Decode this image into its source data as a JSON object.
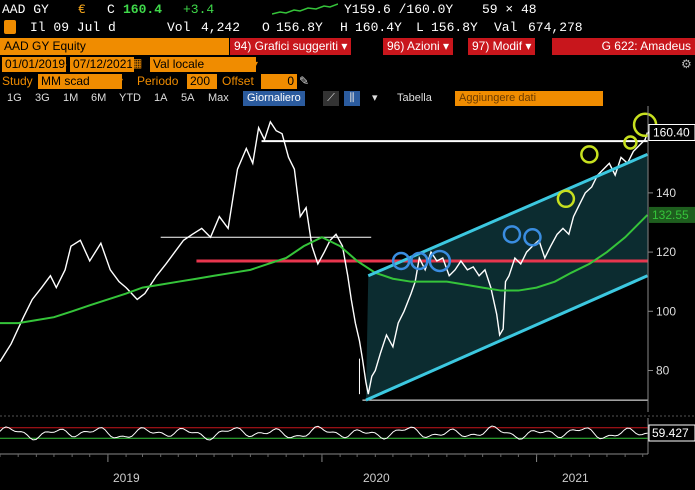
{
  "quote": {
    "ticker": "AAD GY",
    "currency_symbol": "€",
    "close_prefix": "C",
    "last": "160.4",
    "change": "+3.4",
    "bid_ask": "Y159.6 /160.0Y",
    "size": "59 × 48",
    "time_label": "Il 09 Jul d",
    "volume_label": "Vol",
    "volume": "4,242",
    "open_label": "O",
    "open": "156.8Y",
    "high_label": "H",
    "high": "160.4Y",
    "low_label": "L",
    "low": "156.8Y",
    "value_label": "Val",
    "value": "674,278"
  },
  "menu": {
    "security": "AAD GY Equity",
    "suggested": "94) Grafici suggeriti ▾",
    "actions": "96) Azioni ▾",
    "modify": "97) Modif ▾",
    "right_label": "G 622: Amadeus"
  },
  "controls": {
    "date_from": "01/01/2019",
    "date_to": "07/12/2021",
    "currency": "Val locale",
    "study_label": "Study",
    "study_value": "MM scad",
    "period_label": "Periodo",
    "period_value": "200",
    "offset_label": "Offset",
    "offset_value": "0"
  },
  "toolbar": {
    "ranges": [
      "1G",
      "3G",
      "1M",
      "6M",
      "YTD",
      "1A",
      "5A",
      "Max"
    ],
    "frequency": "Giornaliero",
    "table": "Tabella",
    "add_data": "Aggiungere dati"
  },
  "colors": {
    "price": "#ffffff",
    "moving_average": "#35c43a",
    "channel": "#3cc8e0",
    "support_line": "#e8364e",
    "resistance_line": "#ffffff",
    "breakout_circle": "#c7e01f",
    "touch_circle": "#3a8de0",
    "oscillator": "#ffffff",
    "label_last": "#ffffff",
    "label_ma": "#35c43a"
  },
  "chart_data": {
    "type": "line",
    "x_range": [
      "2018-07-01",
      "2021-07-10"
    ],
    "y_range": [
      68,
      168
    ],
    "yticks": [
      80,
      100,
      120,
      140
    ],
    "xticks": [
      "2019",
      "2020",
      "2021"
    ],
    "grid": false,
    "last_value_label": "160.40",
    "ma_value_label": "132.55",
    "series": [
      {
        "x": [
          "2018-07-01",
          "2018-07-20",
          "2018-08-10",
          "2018-08-25",
          "2018-09-10",
          "2018-09-25",
          "2018-10-05",
          "2018-10-20",
          "2018-10-30",
          "2018-11-15",
          "2018-12-01",
          "2018-12-20",
          "2019-01-05",
          "2019-01-20",
          "2019-02-01",
          "2019-02-20",
          "2019-03-05",
          "2019-03-25",
          "2019-04-10",
          "2019-04-25",
          "2019-05-10",
          "2019-05-25",
          "2019-06-10",
          "2019-06-25",
          "2019-07-10",
          "2019-07-25",
          "2019-08-10",
          "2019-08-25",
          "2019-09-05",
          "2019-09-15",
          "2019-09-25",
          "2019-10-05",
          "2019-10-15",
          "2019-10-25",
          "2019-11-05",
          "2019-11-15",
          "2019-11-25",
          "2019-12-05",
          "2019-12-15",
          "2019-12-25",
          "2020-01-05",
          "2020-01-15",
          "2020-01-25",
          "2020-02-05",
          "2020-02-14",
          "2020-02-20",
          "2020-02-27",
          "2020-03-05",
          "2020-03-10",
          "2020-03-16",
          "2020-03-20",
          "2020-03-26",
          "2020-04-01",
          "2020-04-10",
          "2020-04-20",
          "2020-05-01",
          "2020-05-10",
          "2020-05-20",
          "2020-06-01",
          "2020-06-08",
          "2020-06-15",
          "2020-06-25",
          "2020-07-05",
          "2020-07-15",
          "2020-07-25",
          "2020-08-05",
          "2020-08-15",
          "2020-08-25",
          "2020-09-05",
          "2020-09-15",
          "2020-09-25",
          "2020-10-05",
          "2020-10-15",
          "2020-10-25",
          "2020-10-30",
          "2020-11-05",
          "2020-11-09",
          "2020-11-15",
          "2020-11-25",
          "2020-12-05",
          "2020-12-15",
          "2020-12-25",
          "2021-01-05",
          "2021-01-15",
          "2021-01-25",
          "2021-02-05",
          "2021-02-15",
          "2021-02-25",
          "2021-03-05",
          "2021-03-15",
          "2021-03-25",
          "2021-04-05",
          "2021-04-15",
          "2021-04-25",
          "2021-05-05",
          "2021-05-15",
          "2021-05-25",
          "2021-06-05",
          "2021-06-15",
          "2021-06-25",
          "2021-07-05",
          "2021-07-09"
        ],
        "values": [
          83,
          89,
          98,
          104,
          108,
          112,
          108,
          114,
          122,
          124,
          117,
          123,
          114,
          110,
          108,
          104,
          106,
          112,
          116,
          120,
          124,
          126,
          128,
          125,
          132,
          128,
          148,
          155,
          150,
          162,
          158,
          164,
          161,
          160,
          152,
          148,
          132,
          135,
          122,
          116,
          120,
          124,
          126,
          122,
          112,
          104,
          96,
          90,
          84,
          76,
          72,
          78,
          80,
          86,
          92,
          88,
          96,
          100,
          106,
          110,
          118,
          114,
          120,
          117,
          118,
          112,
          114,
          117,
          114,
          115,
          112,
          114,
          108,
          99,
          92,
          94,
          110,
          112,
          118,
          116,
          120,
          122,
          124,
          118,
          122,
          126,
          128,
          126,
          132,
          136,
          140,
          142,
          146,
          148,
          150,
          146,
          152,
          150,
          154,
          156,
          158,
          160.4
        ],
        "y_break": [
          "2019-09-25",
          "2019-10-05",
          "2019-10-15",
          "2019-10-25",
          "2019-11-05"
        ]
      },
      {
        "x": [
          "2018-07-01",
          "2018-08-01",
          "2018-09-01",
          "2018-10-01",
          "2018-11-01",
          "2018-12-01",
          "2019-01-01",
          "2019-02-01",
          "2019-03-01",
          "2019-04-01",
          "2019-05-01",
          "2019-06-01",
          "2019-07-01",
          "2019-08-01",
          "2019-09-01",
          "2019-10-01",
          "2019-11-01",
          "2019-12-01",
          "2020-01-01",
          "2020-02-01",
          "2020-03-01",
          "2020-04-01",
          "2020-05-01",
          "2020-06-01",
          "2020-07-01",
          "2020-08-01",
          "2020-09-01",
          "2020-10-01",
          "2020-11-01",
          "2020-12-01",
          "2021-01-01",
          "2021-02-01",
          "2021-03-01",
          "2021-04-01",
          "2021-05-01",
          "2021-06-01",
          "2021-07-09"
        ],
        "values": [
          96,
          96,
          97,
          98,
          100,
          102,
          104,
          106,
          108,
          109,
          110,
          111,
          112,
          113,
          114,
          116,
          118,
          122,
          125,
          122,
          117,
          113,
          111,
          110,
          110,
          110,
          109,
          108,
          107,
          107,
          108,
          110,
          113,
          116,
          120,
          125,
          132.55
        ]
      }
    ],
    "channel_lower": {
      "x": [
        "2020-03-16",
        "2021-07-09"
      ],
      "values": [
        70,
        112
      ]
    },
    "channel_upper": {
      "x": [
        "2020-03-20",
        "2021-07-09"
      ],
      "values": [
        112,
        153
      ]
    },
    "support_level": 117,
    "resistance_level": 157.5,
    "marker_level_hi": 125,
    "marker_level_lo": 70,
    "touch_points": [
      {
        "x": "2020-05-15",
        "y": 117
      },
      {
        "x": "2020-06-15",
        "y": 117
      },
      {
        "x": "2020-07-20",
        "y": 117
      },
      {
        "x": "2020-11-20",
        "y": 126
      },
      {
        "x": "2020-12-25",
        "y": 125
      }
    ],
    "breakout_points": [
      {
        "x": "2021-02-20",
        "y": 138
      },
      {
        "x": "2021-04-01",
        "y": 153
      },
      {
        "x": "2021-06-10",
        "y": 157
      },
      {
        "x": "2021-07-05",
        "y": 163
      }
    ],
    "oscillator": {
      "current": "59.427",
      "upper": 70,
      "lower": 30
    }
  }
}
